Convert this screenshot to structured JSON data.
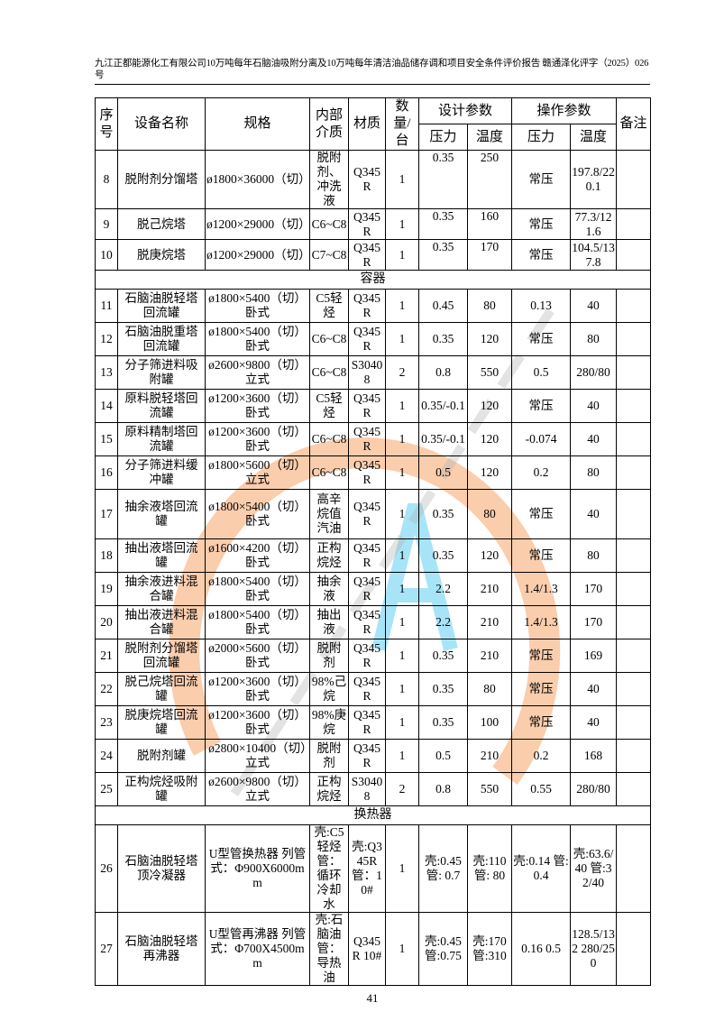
{
  "header_text": "九江正都能源化工有限公司10万吨每年石脑油吸附分离及10万吨每年清洁油品储存调和项目安全条件评价报告  赣通泽化评字（2025）026号",
  "table": {
    "headers": {
      "no": "序号",
      "name": "设备名称",
      "spec": "规格",
      "medium": "内部介质",
      "material": "材质",
      "qty": "数量/台",
      "design": "设计参数",
      "operation": "操作参数",
      "pressure": "压力",
      "temperature": "温度",
      "remark": "备注"
    },
    "sections": [
      {
        "title": "",
        "rows": [
          {
            "no": "8",
            "name": "脱附剂分馏塔",
            "spec": "ø1800×36000（切）",
            "medium": "脱附剂、冲洗液",
            "material": "Q345R",
            "qty": "1",
            "dp": "0.35",
            "dt": "250",
            "op": "常压",
            "ot": "197.8/220.1",
            "top": true
          },
          {
            "no": "9",
            "name": "脱己烷塔",
            "spec": "ø1200×29000（切）",
            "medium": "C6~C8",
            "material": "Q345R",
            "qty": "1",
            "dp": "0.35",
            "dt": "160",
            "op": "常压",
            "ot": "77.3/121.6",
            "top": true
          },
          {
            "no": "10",
            "name": "脱庚烷塔",
            "spec": "ø1200×29000（切）",
            "medium": "C7~C8",
            "material": "Q345R",
            "qty": "1",
            "dp": "0.35",
            "dt": "170",
            "op": "常压",
            "ot": "104.5/137.8",
            "top": true
          }
        ]
      },
      {
        "title": "容器",
        "rows": [
          {
            "no": "11",
            "name": "石脑油脱轻塔回流罐",
            "spec": "ø1800×5400（切）卧式",
            "medium": "C5轻烃",
            "material": "Q345R",
            "qty": "1",
            "dp": "0.45",
            "dt": "80",
            "op": "0.13",
            "ot": "40"
          },
          {
            "no": "12",
            "name": "石脑油脱重塔回流罐",
            "spec": "ø1800×5400（切）卧式",
            "medium": "C6~C8",
            "material": "Q345R",
            "qty": "1",
            "dp": "0.35",
            "dt": "120",
            "op": "常压",
            "ot": "80"
          },
          {
            "no": "13",
            "name": "分子筛进料吸附罐",
            "spec": "ø2600×9800（切）立式",
            "medium": "C6~C8",
            "material": "S30408",
            "qty": "2",
            "dp": "0.8",
            "dt": "550",
            "op": "0.5",
            "ot": "280/80"
          },
          {
            "no": "14",
            "name": "原料脱轻塔回流罐",
            "spec": "ø1200×3600（切）卧式",
            "medium": "C5轻烃",
            "material": "Q345R",
            "qty": "1",
            "dp": "0.35/-0.1",
            "dt": "120",
            "op": "常压",
            "ot": "40"
          },
          {
            "no": "15",
            "name": "原料精制塔回流罐",
            "spec": "ø1200×3600（切）卧式",
            "medium": "C6~C8",
            "material": "Q345R",
            "qty": "1",
            "dp": "0.35/-0.1",
            "dt": "120",
            "op": "-0.074",
            "ot": "40"
          },
          {
            "no": "16",
            "name": "分子筛进料缓冲罐",
            "spec": "ø1800×5600（切）立式",
            "medium": "C6~C8",
            "material": "Q345R",
            "qty": "1",
            "dp": "0.5",
            "dt": "120",
            "op": "0.2",
            "ot": "80"
          },
          {
            "no": "17",
            "name": "抽余液塔回流罐",
            "spec": "ø1800×5400（切）卧式",
            "medium": "高辛烷值汽油",
            "material": "Q345R",
            "qty": "1",
            "dp": "0.35",
            "dt": "80",
            "op": "常压",
            "ot": "40"
          },
          {
            "no": "18",
            "name": "抽出液塔回流罐",
            "spec": "ø1600×4200（切）卧式",
            "medium": "正构烷烃",
            "material": "Q345R",
            "qty": "1",
            "dp": "0.35",
            "dt": "120",
            "op": "常压",
            "ot": "80"
          },
          {
            "no": "19",
            "name": "抽余液进料混合罐",
            "spec": "ø1800×5400（切）卧式",
            "medium": "抽余液",
            "material": "Q345R",
            "qty": "1",
            "dp": "2.2",
            "dt": "210",
            "op": "1.4/1.3",
            "ot": "170"
          },
          {
            "no": "20",
            "name": "抽出液进料混合罐",
            "spec": "ø1800×5400（切）卧式",
            "medium": "抽出液",
            "material": "Q345R",
            "qty": "1",
            "dp": "2.2",
            "dt": "210",
            "op": "1.4/1.3",
            "ot": "170"
          },
          {
            "no": "21",
            "name": "脱附剂分馏塔回流罐",
            "spec": "ø2000×5600（切）卧式",
            "medium": "脱附剂",
            "material": "Q345R",
            "qty": "1",
            "dp": "0.35",
            "dt": "210",
            "op": "常压",
            "ot": "169"
          },
          {
            "no": "22",
            "name": "脱己烷塔回流罐",
            "spec": "ø1200×3600（切）卧式",
            "medium": "98%己烷",
            "material": "Q345R",
            "qty": "1",
            "dp": "0.35",
            "dt": "80",
            "op": "常压",
            "ot": "40"
          },
          {
            "no": "23",
            "name": "脱庚烷塔回流罐",
            "spec": "ø1200×3600（切）卧式",
            "medium": "98%庚烷",
            "material": "Q345R",
            "qty": "1",
            "dp": "0.35",
            "dt": "100",
            "op": "常压",
            "ot": "40"
          },
          {
            "no": "24",
            "name": "脱附剂罐",
            "spec": "ø2800×10400（切）立式",
            "medium": "脱附剂",
            "material": "Q345R",
            "qty": "1",
            "dp": "0.5",
            "dt": "210",
            "op": "0.2",
            "ot": "168"
          },
          {
            "no": "25",
            "name": "正构烷烃吸附罐",
            "spec": "ø2600×9800（切）立式",
            "medium": "正构烷烃",
            "material": "S30408",
            "qty": "2",
            "dp": "0.8",
            "dt": "550",
            "op": "0.55",
            "ot": "280/80"
          }
        ]
      },
      {
        "title": "换热器",
        "rows": [
          {
            "no": "26",
            "name": "石脑油脱轻塔顶冷凝器",
            "spec": "U型管换热器 列管式：Φ900X6000mm",
            "medium": "壳:C5轻烃 管：循环冷却水",
            "material": "壳:Q345R 管：10#",
            "qty": "1",
            "dp": "壳:0.45 管: 0.7",
            "dt": "壳:110 管: 80",
            "op": "壳:0.14 管: 0.4",
            "ot": "壳:63.6/40 管:32/40"
          },
          {
            "no": "27",
            "name": "石脑油脱轻塔再沸器",
            "spec": "U型管再沸器 列管式：Φ700X4500mm",
            "medium": "壳:石脑油 管：导热油",
            "material": "Q345R 10#",
            "qty": "1",
            "dp": "壳:0.45 管:0.75",
            "dt": "壳:170 管:310",
            "op": "0.16 0.5",
            "ot": "128.5/132 280/250"
          }
        ]
      }
    ]
  },
  "page_number": "41",
  "watermark_colors": {
    "arc": "#f6a46a",
    "letters": "#3fc4ee",
    "text": "#b0b0b0"
  }
}
